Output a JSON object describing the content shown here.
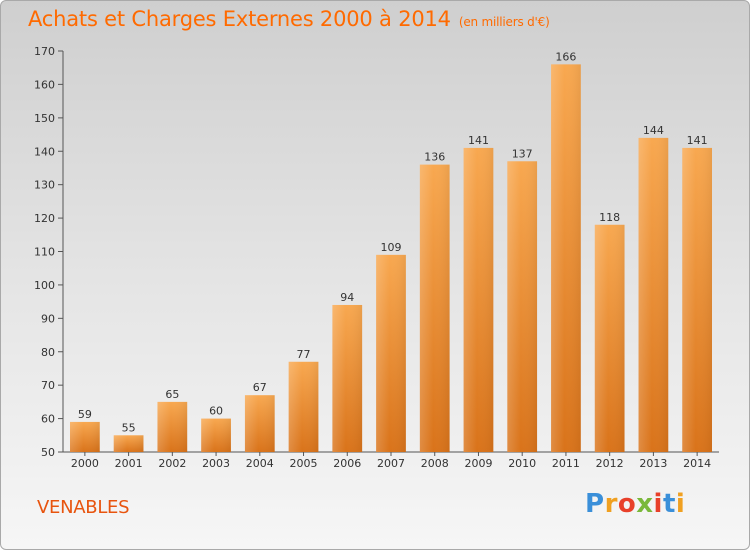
{
  "title": "Achats et Charges Externes 2000 à 2014",
  "unit_note": "(en milliers d'€)",
  "commune": "VENABLES",
  "logo": {
    "text": "Proxiti",
    "colors": [
      "#3a8fd9",
      "#f0a020",
      "#e8402a",
      "#7ab83a",
      "#e8402a",
      "#3a8fd9",
      "#f0a020"
    ]
  },
  "colors": {
    "accent": "#ff6a00",
    "bar_top": "#f8a850",
    "bar_bottom": "#d9731a"
  },
  "chart_data": {
    "type": "bar",
    "title": "Achats et Charges Externes 2000 à 2014",
    "subtitle": "(en milliers d'€)",
    "xlabel": "",
    "ylabel": "",
    "categories": [
      "2000",
      "2001",
      "2002",
      "2003",
      "2004",
      "2005",
      "2006",
      "2007",
      "2008",
      "2009",
      "2010",
      "2011",
      "2012",
      "2013",
      "2014"
    ],
    "values": [
      59,
      55,
      65,
      60,
      67,
      77,
      94,
      109,
      136,
      141,
      137,
      166,
      118,
      144,
      141
    ],
    "ylim": [
      50,
      170
    ],
    "yticks": [
      50,
      60,
      70,
      80,
      90,
      100,
      110,
      120,
      130,
      140,
      150,
      160,
      170
    ],
    "grid": false,
    "legend": "none"
  }
}
